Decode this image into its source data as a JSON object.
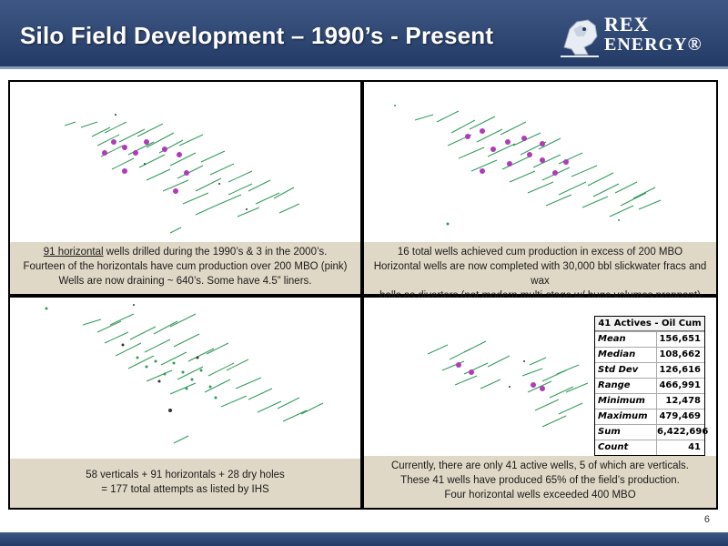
{
  "header": {
    "title": "Silo Field Development – 1990’s - Present",
    "logo_line1": "REX",
    "logo_line2": "ENERGY®"
  },
  "panels": {
    "top_left": {
      "underlined": "91 horizontal",
      "line1_rest": " wells drilled during the 1990’s & 3 in the 2000’s.",
      "line2": "Fourteen of the horizontals have cum production over 200 MBO (pink)",
      "line3": "Wells are now draining ~ 640’s.  Some have 4.5” liners."
    },
    "top_right": {
      "line1": "16 total wells achieved cum production in excess of 200 MBO",
      "line2": "Horizontal wells are now completed with 30,000 bbl slickwater fracs and wax",
      "line3": "balls as diverters (not modern multi-stage w/ huge volumes proppant)"
    },
    "bottom_left": {
      "line1": "58 verticals + 91 horizontals + 28 dry holes",
      "line2": "= 177 total attempts  as listed by IHS"
    },
    "bottom_right": {
      "line1": "Currently, there are only 41 active wells, 5 of which are verticals.",
      "line2": "These 41 wells have produced 65% of the field’s production.",
      "line3": "Four horizontal wells exceeded 400 MBO"
    }
  },
  "stats_table": {
    "title": "41 Actives - Oil Cum",
    "rows": [
      {
        "label": "Mean",
        "value": "156,651"
      },
      {
        "label": "Median",
        "value": "108,662"
      },
      {
        "label": "Std Dev",
        "value": "126,616"
      },
      {
        "label": "Range",
        "value": "466,991"
      },
      {
        "label": "Minimum",
        "value": "12,478"
      },
      {
        "label": "Maximum",
        "value": "479,469"
      },
      {
        "label": "Sum",
        "value": "6,422,696"
      },
      {
        "label": "Count",
        "value": "41"
      }
    ]
  },
  "page_number": "6",
  "colors": {
    "header_blue": "#2b4470",
    "caption_bg": "#e0d8c6",
    "well_green": "#2f9a5a",
    "well_pink": "#b03ab8"
  }
}
